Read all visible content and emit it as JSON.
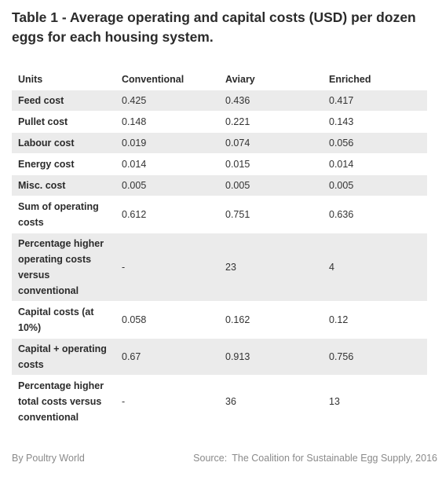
{
  "title": "Table 1 - Average operating and capital costs (USD) per dozen eggs for each housing system.",
  "table": {
    "headers": [
      "Units",
      "Conventional",
      "Aviary",
      "Enriched"
    ],
    "rows": [
      {
        "label": "Feed cost",
        "values": [
          "0.425",
          "0.436",
          "0.417"
        ]
      },
      {
        "label": "Pullet cost",
        "values": [
          "0.148",
          "0.221",
          "0.143"
        ]
      },
      {
        "label": "Labour cost",
        "values": [
          "0.019",
          "0.074",
          "0.056"
        ]
      },
      {
        "label": "Energy cost",
        "values": [
          "0.014",
          "0.015",
          "0.014"
        ]
      },
      {
        "label": "Misc. cost",
        "values": [
          "0.005",
          "0.005",
          "0.005"
        ]
      },
      {
        "label": "Sum of operating costs",
        "values": [
          "0.612",
          "0.751",
          "0.636"
        ]
      },
      {
        "label": "Percentage higher operating costs versus conventional",
        "values": [
          "-",
          "23",
          "4"
        ]
      },
      {
        "label": "Capital costs (at 10%)",
        "values": [
          "0.058",
          "0.162",
          "0.12"
        ]
      },
      {
        "label": "Capital + operating costs",
        "values": [
          "0.67",
          "0.913",
          "0.756"
        ]
      },
      {
        "label": "Percentage higher total costs versus conventional",
        "values": [
          "-",
          "36",
          "13"
        ]
      }
    ]
  },
  "footer": {
    "byline": "By Poultry World",
    "source_label": "Source:",
    "source_text": "The Coalition for Sustainable Egg Supply, 2016"
  },
  "colors": {
    "row_shade": "#ebebeb",
    "footer_text": "#8a8a8a"
  }
}
